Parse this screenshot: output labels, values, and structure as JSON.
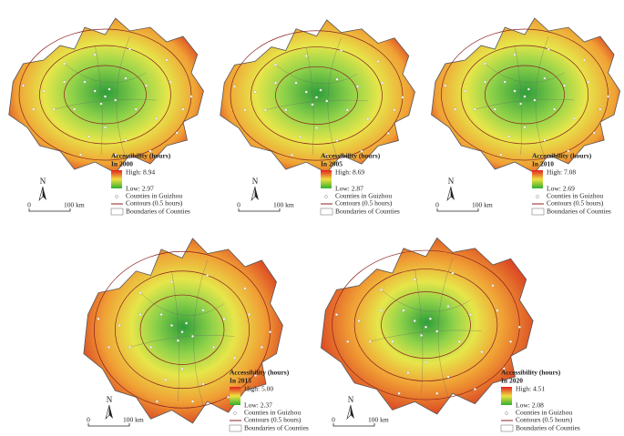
{
  "panels": [
    {
      "legend": {
        "title": "Accessibility (hours)",
        "year": "In 2000",
        "high": "High: 8.94",
        "low": "Low: 2.97",
        "counties": "Counties in Guizhou",
        "contours": "Contours (0.5 hours)",
        "boundaries": "Boundaries of Counties"
      },
      "north": "N",
      "scale": {
        "zero": "0",
        "distance": "100 km"
      }
    },
    {
      "legend": {
        "title": "Accessibility (hours)",
        "year": "In 2005",
        "high": "High: 8.69",
        "low": "Low: 2.87",
        "counties": "Counties in Guizhou",
        "contours": "Contours (0.5 hours)",
        "boundaries": "Boundaries of Counties"
      },
      "north": "N",
      "scale": {
        "zero": "0",
        "distance": "100 km"
      }
    },
    {
      "legend": {
        "title": "Accessibility (hours)",
        "year": "In 2010",
        "high": "High: 7.08",
        "low": "Low: 2.69",
        "counties": "Counties in Guizhou",
        "contours": "Contours (0.5 hours)",
        "boundaries": "Boundaries of Counties"
      },
      "north": "N",
      "scale": {
        "zero": "0",
        "distance": "100 km"
      }
    },
    {
      "legend": {
        "title": "Accessibility (hours)",
        "year": "In 2015",
        "high": "High: 5.00",
        "low": "Low: 2.37",
        "counties": "Counties in Guizhou",
        "contours": "Contours (0.5 hours)",
        "boundaries": "Boundaries of Counties"
      },
      "north": "N",
      "scale": {
        "zero": "0",
        "distance": "100 km"
      }
    },
    {
      "legend": {
        "title": "Accessibility (hours)",
        "year": "In 2020",
        "high": "High: 4.51",
        "low": "Low: 2.08",
        "counties": "Counties in Guizhou",
        "contours": "Contours (0.5 hours)",
        "boundaries": "Boundaries of Counties"
      },
      "north": "N",
      "scale": {
        "zero": "0",
        "distance": "100 km"
      }
    }
  ]
}
